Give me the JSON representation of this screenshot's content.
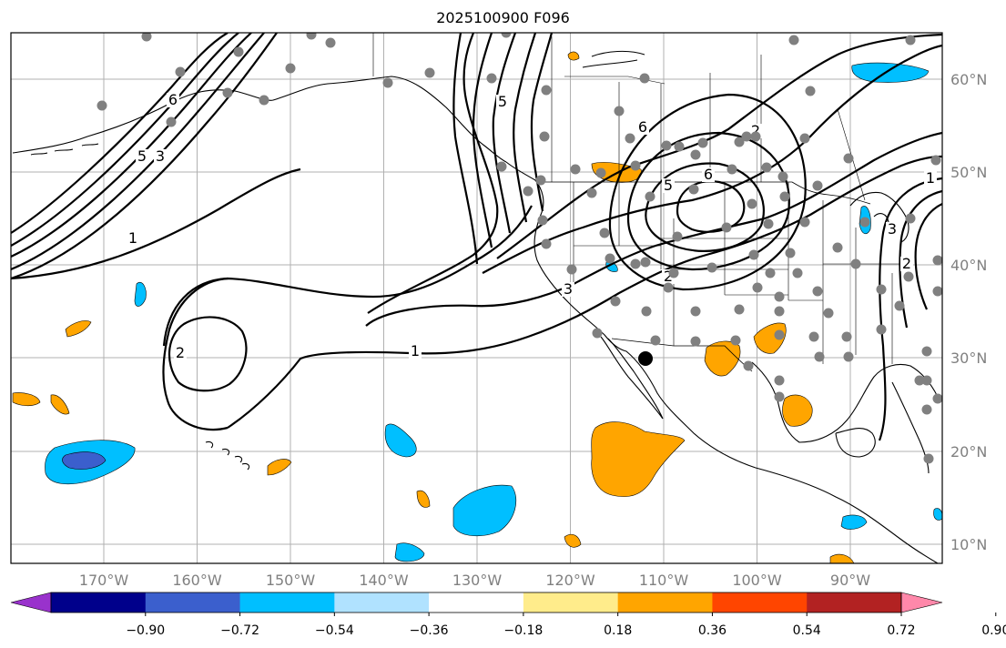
{
  "title": "2025100900 F096",
  "longitude_labels": [
    "170°W",
    "160°W",
    "150°W",
    "140°W",
    "130°W",
    "120°W",
    "110°W",
    "100°W",
    "90°W"
  ],
  "latitude_labels": [
    "60°N",
    "50°N",
    "40°N",
    "30°N",
    "20°N",
    "10°N"
  ],
  "contour_labels": [
    "6",
    "5",
    "3",
    "1",
    "2",
    "1",
    "2",
    "3",
    "5",
    "6",
    "5",
    "6",
    "2",
    "3",
    "1",
    "2"
  ],
  "colorbar": {
    "ticks": [
      "−0.90",
      "−0.72",
      "−0.54",
      "−0.36",
      "−0.18",
      "0.18",
      "0.36",
      "0.54",
      "0.72",
      "0.90"
    ],
    "colors": [
      "#9932cc",
      "#00008b",
      "#3b5fcd",
      "#00bfff",
      "#b0e2ff",
      "#ffffff",
      "#ffec8b",
      "#ffa500",
      "#ff4500",
      "#b22222",
      "#ff88aa"
    ]
  },
  "field_colors": {
    "light_blue": "#00bfff",
    "medium_blue": "#3b5fcd",
    "orange": "#ffa500",
    "station": "#808080",
    "marker": "#000000"
  }
}
